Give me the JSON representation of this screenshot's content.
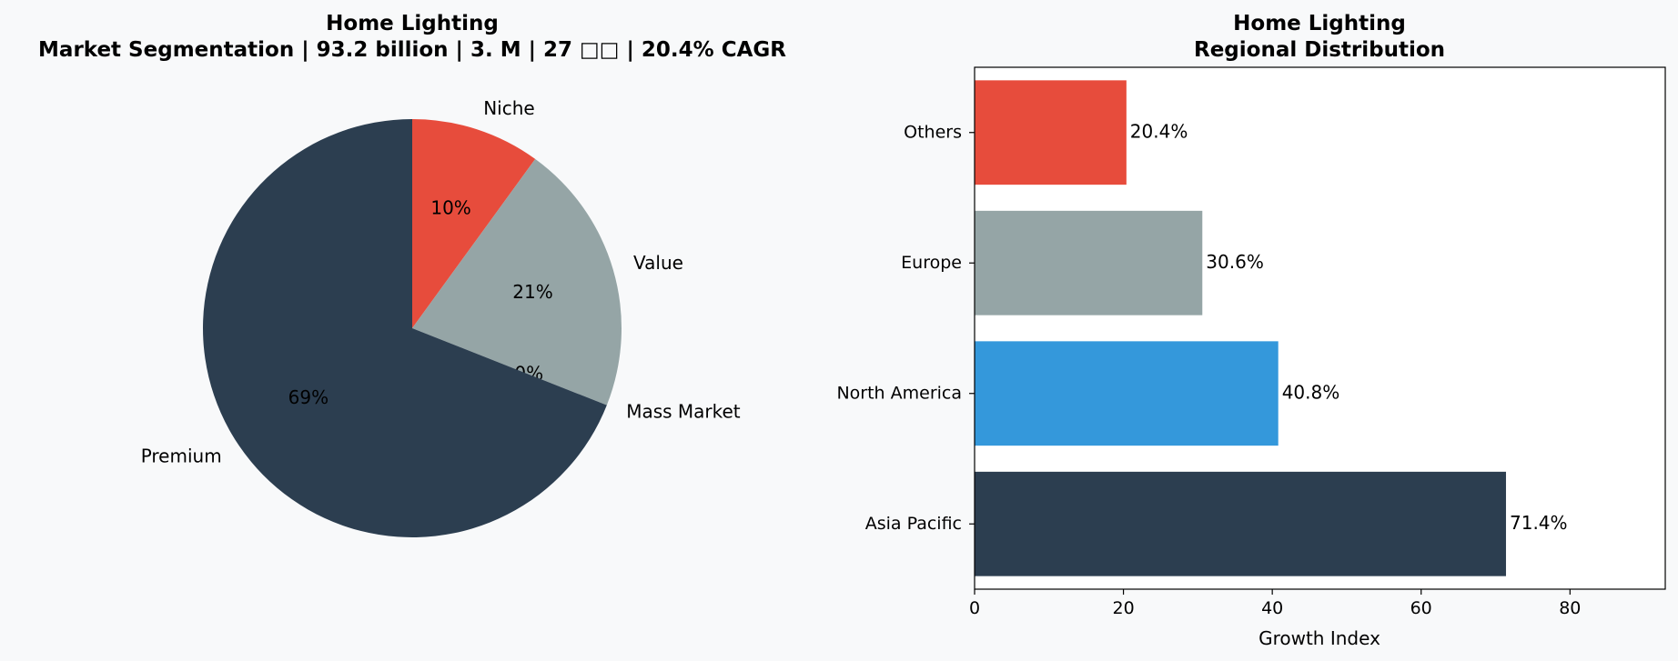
{
  "chart_data": [
    {
      "type": "pie",
      "title": "Home Lighting",
      "subtitle": "Market Segmentation | 93.2 billion | 3. M | 27 □□ | 20.4% CAGR",
      "slices": [
        {
          "label": "Niche",
          "value": 10,
          "pct_label": "10%",
          "color": "#e74c3c"
        },
        {
          "label": "Value",
          "value": 21,
          "pct_label": "21%",
          "color": "#95a5a6"
        },
        {
          "label": "Mass Market",
          "value": 0,
          "pct_label": "0%",
          "color": "#3498db"
        },
        {
          "label": "Premium",
          "value": 69,
          "pct_label": "69%",
          "color": "#2c3e50"
        }
      ],
      "start_angle_deg": 90,
      "direction": "clockwise"
    },
    {
      "type": "bar",
      "orientation": "horizontal",
      "title": "Home Lighting",
      "subtitle": "Regional Distribution",
      "categories": [
        "Asia Pacific",
        "North America",
        "Europe",
        "Others"
      ],
      "values": [
        71.4,
        40.8,
        30.6,
        20.4
      ],
      "value_labels": [
        "71.4%",
        "40.8%",
        "30.6%",
        "20.4%"
      ],
      "colors": [
        "#2c3e50",
        "#3498db",
        "#95a5a6",
        "#e74c3c"
      ],
      "xlabel": "Growth Index",
      "ylabel": "",
      "xlim": [
        0,
        92.8
      ],
      "xticks": [
        0,
        20,
        40,
        60,
        80
      ],
      "grid": false,
      "legend": false
    }
  ]
}
